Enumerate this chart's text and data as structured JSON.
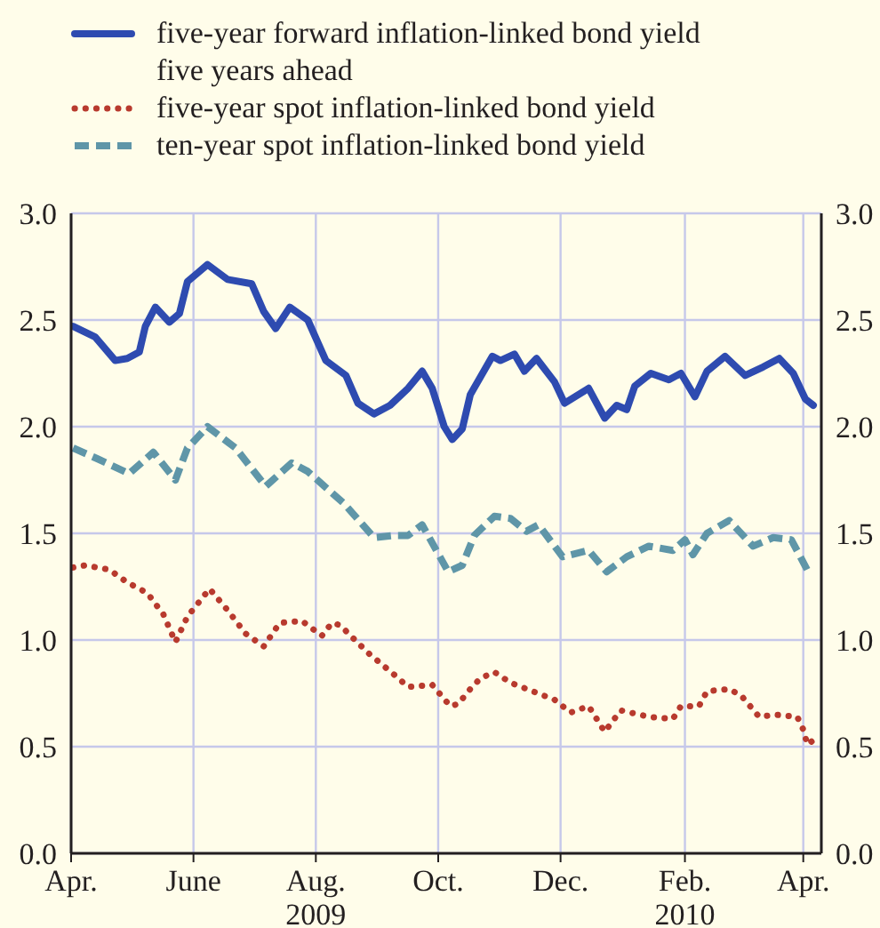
{
  "chart_data": {
    "type": "line",
    "legend": "top",
    "grid": true,
    "xlim": [
      "2009-04-01",
      "2010-04-10"
    ],
    "xticks": [
      {
        "value": "2009-04-01",
        "label": "Apr."
      },
      {
        "value": "2009-06-01",
        "label": "June"
      },
      {
        "value": "2009-08-01",
        "label": "Aug.\n2009"
      },
      {
        "value": "2009-10-01",
        "label": "Oct."
      },
      {
        "value": "2009-12-01",
        "label": "Dec."
      },
      {
        "value": "2010-02-01",
        "label": "Feb.\n2010"
      },
      {
        "value": "2010-04-01",
        "label": "Apr."
      }
    ],
    "ylim": [
      0,
      3
    ],
    "yticks": [
      {
        "value": 0,
        "label": "0.0"
      },
      {
        "value": 0.5,
        "label": "0.5"
      },
      {
        "value": 1,
        "label": "1.0"
      },
      {
        "value": 1.5,
        "label": "1.5"
      },
      {
        "value": 2,
        "label": "2.0"
      },
      {
        "value": 2.5,
        "label": "2.5"
      },
      {
        "value": 3,
        "label": "3.0"
      }
    ],
    "y2lim": [
      0,
      3
    ],
    "y2ticks": [
      {
        "value": 0,
        "label": "0.0"
      },
      {
        "value": 0.5,
        "label": "0.5"
      },
      {
        "value": 1,
        "label": "1.0"
      },
      {
        "value": 1.5,
        "label": "1.5"
      },
      {
        "value": 2,
        "label": "2.0"
      },
      {
        "value": 2.5,
        "label": "2.5"
      },
      {
        "value": 3,
        "label": "3.0"
      }
    ],
    "series": [
      {
        "name": "five-year forward inflation-linked bond yield five years ahead",
        "color": "#2e4bb0",
        "line_style": "solid",
        "x": [
          "2009-04-02",
          "2009-04-13",
          "2009-04-23",
          "2009-04-29",
          "2009-05-05",
          "2009-05-08",
          "2009-05-13",
          "2009-05-20",
          "2009-05-25",
          "2009-05-29",
          "2009-06-03",
          "2009-06-08",
          "2009-06-18",
          "2009-06-30",
          "2009-07-06",
          "2009-07-12",
          "2009-07-19",
          "2009-07-28",
          "2009-08-06",
          "2009-08-16",
          "2009-08-22",
          "2009-08-30",
          "2009-09-07",
          "2009-09-16",
          "2009-09-23",
          "2009-09-28",
          "2009-10-04",
          "2009-10-08",
          "2009-10-13",
          "2009-10-17",
          "2009-10-28",
          "2009-11-01",
          "2009-11-08",
          "2009-11-13",
          "2009-11-19",
          "2009-11-28",
          "2009-12-03",
          "2009-12-15",
          "2009-12-23",
          "2009-12-29",
          "2010-01-03",
          "2010-01-07",
          "2010-01-15",
          "2010-01-24",
          "2010-01-30",
          "2010-02-06",
          "2010-02-12",
          "2010-02-21",
          "2010-03-03",
          "2010-03-12",
          "2010-03-20",
          "2010-03-27",
          "2010-04-02",
          "2010-04-06"
        ],
        "values": [
          2.47,
          2.42,
          2.31,
          2.32,
          2.35,
          2.47,
          2.56,
          2.49,
          2.53,
          2.68,
          2.72,
          2.76,
          2.69,
          2.67,
          2.54,
          2.46,
          2.56,
          2.5,
          2.31,
          2.24,
          2.11,
          2.06,
          2.1,
          2.18,
          2.26,
          2.18,
          2.0,
          1.94,
          1.99,
          2.15,
          2.33,
          2.31,
          2.34,
          2.26,
          2.32,
          2.21,
          2.11,
          2.18,
          2.04,
          2.1,
          2.08,
          2.19,
          2.25,
          2.22,
          2.25,
          2.14,
          2.26,
          2.33,
          2.24,
          2.28,
          2.32,
          2.25,
          2.13,
          2.1
        ]
      },
      {
        "name": "five-year spot inflation-linked bond yield",
        "color": "#b83a2e",
        "line_style": "dotted",
        "x": [
          "2009-04-02",
          "2009-04-08",
          "2009-04-20",
          "2009-04-29",
          "2009-05-09",
          "2009-05-17",
          "2009-05-23",
          "2009-05-29",
          "2009-06-09",
          "2009-06-18",
          "2009-06-27",
          "2009-07-06",
          "2009-07-14",
          "2009-07-25",
          "2009-08-04",
          "2009-08-09",
          "2009-08-13",
          "2009-08-27",
          "2009-09-10",
          "2009-09-16",
          "2009-09-28",
          "2009-10-07",
          "2009-10-11",
          "2009-10-16",
          "2009-10-22",
          "2009-10-29",
          "2009-11-06",
          "2009-11-17",
          "2009-11-28",
          "2009-12-06",
          "2009-12-15",
          "2009-12-23",
          "2009-12-31",
          "2010-01-14",
          "2010-01-26",
          "2010-01-30",
          "2010-02-08",
          "2010-02-12",
          "2010-02-23",
          "2010-03-01",
          "2010-03-10",
          "2010-03-18",
          "2010-03-29",
          "2010-04-01",
          "2010-04-03",
          "2010-04-06"
        ],
        "values": [
          1.34,
          1.35,
          1.33,
          1.27,
          1.22,
          1.12,
          0.99,
          1.11,
          1.24,
          1.14,
          1.03,
          0.97,
          1.08,
          1.09,
          1.02,
          1.08,
          1.07,
          0.94,
          0.83,
          0.78,
          0.79,
          0.69,
          0.7,
          0.76,
          0.82,
          0.85,
          0.8,
          0.76,
          0.72,
          0.66,
          0.69,
          0.57,
          0.67,
          0.64,
          0.63,
          0.69,
          0.69,
          0.76,
          0.77,
          0.74,
          0.64,
          0.65,
          0.64,
          0.58,
          0.51,
          0.53
        ]
      },
      {
        "name": "ten-year spot inflation-linked bond yield",
        "color": "#5f96a8",
        "line_style": "dashed",
        "x": [
          "2009-04-02",
          "2009-04-14",
          "2009-04-30",
          "2009-05-12",
          "2009-05-23",
          "2009-05-29",
          "2009-06-08",
          "2009-06-22",
          "2009-07-07",
          "2009-07-20",
          "2009-07-28",
          "2009-08-15",
          "2009-08-30",
          "2009-09-09",
          "2009-09-16",
          "2009-09-23",
          "2009-10-06",
          "2009-10-13",
          "2009-10-19",
          "2009-10-29",
          "2009-11-06",
          "2009-11-14",
          "2009-11-20",
          "2009-12-02",
          "2009-12-15",
          "2009-12-24",
          "2010-01-03",
          "2010-01-14",
          "2010-01-26",
          "2010-02-01",
          "2010-02-05",
          "2010-02-12",
          "2010-02-23",
          "2010-03-07",
          "2010-03-17",
          "2010-03-26",
          "2010-03-30",
          "2010-04-04"
        ],
        "values": [
          1.9,
          1.85,
          1.78,
          1.88,
          1.75,
          1.9,
          2.0,
          1.9,
          1.72,
          1.83,
          1.79,
          1.64,
          1.48,
          1.49,
          1.49,
          1.54,
          1.32,
          1.35,
          1.49,
          1.58,
          1.57,
          1.51,
          1.54,
          1.39,
          1.42,
          1.32,
          1.39,
          1.44,
          1.42,
          1.47,
          1.4,
          1.5,
          1.56,
          1.44,
          1.48,
          1.47,
          1.4,
          1.31
        ]
      }
    ]
  }
}
